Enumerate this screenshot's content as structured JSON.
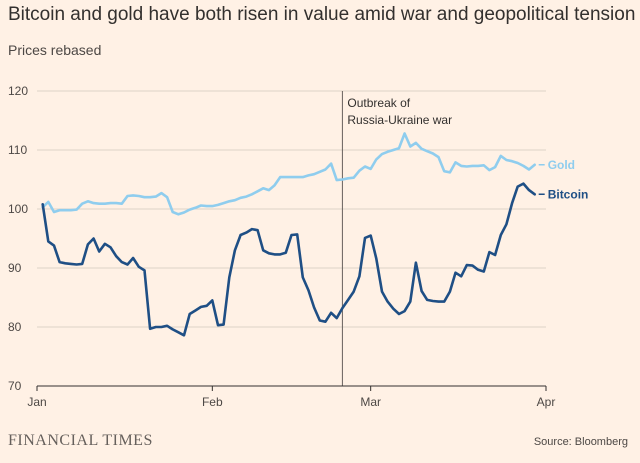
{
  "chart_data": {
    "type": "line",
    "title": "Bitcoin and gold have both risen in value amid war and geopolitical tension",
    "subtitle": "Prices rebased",
    "ylim": [
      70,
      120
    ],
    "yticks": [
      70,
      80,
      90,
      100,
      110,
      120
    ],
    "xlim": [
      "2022-01-01",
      "2022-04-01"
    ],
    "xticks": [
      {
        "date": "2022-01-01",
        "label": "Jan"
      },
      {
        "date": "2022-02-01",
        "label": "Feb"
      },
      {
        "date": "2022-03-01",
        "label": "Mar"
      },
      {
        "date": "2022-04-01",
        "label": "Apr"
      }
    ],
    "grid": true,
    "annotation": {
      "date": "2022-02-24",
      "lines": [
        "Outbreak of",
        "Russia-Ukraine war"
      ]
    },
    "series": [
      {
        "name": "Gold",
        "color": "#8fcdee",
        "points": [
          [
            "2022-01-02",
            100.3
          ],
          [
            "2022-01-03",
            101.2
          ],
          [
            "2022-01-04",
            99.5
          ],
          [
            "2022-01-05",
            99.8
          ],
          [
            "2022-01-06",
            99.8
          ],
          [
            "2022-01-07",
            99.8
          ],
          [
            "2022-01-08",
            99.9
          ],
          [
            "2022-01-09",
            100.9
          ],
          [
            "2022-01-10",
            101.3
          ],
          [
            "2022-01-11",
            101.0
          ],
          [
            "2022-01-12",
            100.9
          ],
          [
            "2022-01-13",
            100.9
          ],
          [
            "2022-01-14",
            101.0
          ],
          [
            "2022-01-15",
            101.0
          ],
          [
            "2022-01-16",
            100.9
          ],
          [
            "2022-01-17",
            102.2
          ],
          [
            "2022-01-18",
            102.3
          ],
          [
            "2022-01-19",
            102.2
          ],
          [
            "2022-01-20",
            102.0
          ],
          [
            "2022-01-21",
            102.0
          ],
          [
            "2022-01-22",
            102.1
          ],
          [
            "2022-01-23",
            102.7
          ],
          [
            "2022-01-24",
            102.0
          ],
          [
            "2022-01-25",
            99.5
          ],
          [
            "2022-01-26",
            99.1
          ],
          [
            "2022-01-27",
            99.4
          ],
          [
            "2022-01-28",
            99.9
          ],
          [
            "2022-01-29",
            100.2
          ],
          [
            "2022-01-30",
            100.6
          ],
          [
            "2022-01-31",
            100.5
          ],
          [
            "2022-02-01",
            100.5
          ],
          [
            "2022-02-02",
            100.7
          ],
          [
            "2022-02-03",
            101.0
          ],
          [
            "2022-02-04",
            101.3
          ],
          [
            "2022-02-05",
            101.5
          ],
          [
            "2022-02-06",
            101.9
          ],
          [
            "2022-02-07",
            102.1
          ],
          [
            "2022-02-08",
            102.5
          ],
          [
            "2022-02-09",
            103.0
          ],
          [
            "2022-02-10",
            103.5
          ],
          [
            "2022-02-11",
            103.2
          ],
          [
            "2022-02-12",
            104.0
          ],
          [
            "2022-02-13",
            105.4
          ],
          [
            "2022-02-14",
            105.4
          ],
          [
            "2022-02-15",
            105.4
          ],
          [
            "2022-02-16",
            105.4
          ],
          [
            "2022-02-17",
            105.4
          ],
          [
            "2022-02-18",
            105.7
          ],
          [
            "2022-02-19",
            105.9
          ],
          [
            "2022-02-20",
            106.3
          ],
          [
            "2022-02-21",
            106.7
          ],
          [
            "2022-02-22",
            107.7
          ],
          [
            "2022-02-23",
            104.9
          ],
          [
            "2022-02-24",
            105.0
          ],
          [
            "2022-02-25",
            105.2
          ],
          [
            "2022-02-26",
            105.3
          ],
          [
            "2022-02-27",
            106.5
          ],
          [
            "2022-02-28",
            107.2
          ],
          [
            "2022-03-01",
            106.8
          ],
          [
            "2022-03-02",
            108.4
          ],
          [
            "2022-03-03",
            109.3
          ],
          [
            "2022-03-04",
            109.7
          ],
          [
            "2022-03-05",
            110.0
          ],
          [
            "2022-03-06",
            110.3
          ],
          [
            "2022-03-07",
            112.8
          ],
          [
            "2022-03-08",
            110.6
          ],
          [
            "2022-03-09",
            111.2
          ],
          [
            "2022-03-10",
            110.2
          ],
          [
            "2022-03-11",
            109.8
          ],
          [
            "2022-03-12",
            109.4
          ],
          [
            "2022-03-13",
            108.8
          ],
          [
            "2022-03-14",
            106.4
          ],
          [
            "2022-03-15",
            106.2
          ],
          [
            "2022-03-16",
            107.9
          ],
          [
            "2022-03-17",
            107.3
          ],
          [
            "2022-03-18",
            107.2
          ],
          [
            "2022-03-19",
            107.3
          ],
          [
            "2022-03-20",
            107.3
          ],
          [
            "2022-03-21",
            107.4
          ],
          [
            "2022-03-22",
            106.6
          ],
          [
            "2022-03-23",
            107.1
          ],
          [
            "2022-03-24",
            109.0
          ],
          [
            "2022-03-25",
            108.3
          ],
          [
            "2022-03-26",
            108.1
          ],
          [
            "2022-03-27",
            107.8
          ],
          [
            "2022-03-28",
            107.3
          ],
          [
            "2022-03-29",
            106.7
          ],
          [
            "2022-03-30",
            107.5
          ]
        ]
      },
      {
        "name": "Bitcoin",
        "color": "#1f4f85",
        "points": [
          [
            "2022-01-02",
            100.8
          ],
          [
            "2022-01-03",
            94.5
          ],
          [
            "2022-01-04",
            93.8
          ],
          [
            "2022-01-05",
            91.0
          ],
          [
            "2022-01-06",
            90.8
          ],
          [
            "2022-01-07",
            90.7
          ],
          [
            "2022-01-08",
            90.6
          ],
          [
            "2022-01-09",
            90.7
          ],
          [
            "2022-01-10",
            94.0
          ],
          [
            "2022-01-11",
            95.0
          ],
          [
            "2022-01-12",
            92.8
          ],
          [
            "2022-01-13",
            94.1
          ],
          [
            "2022-01-14",
            93.5
          ],
          [
            "2022-01-15",
            92.0
          ],
          [
            "2022-01-16",
            91.0
          ],
          [
            "2022-01-17",
            90.6
          ],
          [
            "2022-01-18",
            91.7
          ],
          [
            "2022-01-19",
            90.2
          ],
          [
            "2022-01-20",
            89.6
          ],
          [
            "2022-01-21",
            79.7
          ],
          [
            "2022-01-22",
            80.0
          ],
          [
            "2022-01-23",
            80.0
          ],
          [
            "2022-01-24",
            80.2
          ],
          [
            "2022-01-25",
            79.6
          ],
          [
            "2022-01-26",
            79.1
          ],
          [
            "2022-01-27",
            78.6
          ],
          [
            "2022-01-28",
            82.2
          ],
          [
            "2022-01-29",
            82.8
          ],
          [
            "2022-01-30",
            83.4
          ],
          [
            "2022-01-31",
            83.6
          ],
          [
            "2022-02-01",
            84.5
          ],
          [
            "2022-02-02",
            80.3
          ],
          [
            "2022-02-03",
            80.4
          ],
          [
            "2022-02-04",
            88.4
          ],
          [
            "2022-02-05",
            93.0
          ],
          [
            "2022-02-06",
            95.6
          ],
          [
            "2022-02-07",
            96.0
          ],
          [
            "2022-02-08",
            96.6
          ],
          [
            "2022-02-09",
            96.4
          ],
          [
            "2022-02-10",
            93.0
          ],
          [
            "2022-02-11",
            92.5
          ],
          [
            "2022-02-12",
            92.3
          ],
          [
            "2022-02-13",
            92.3
          ],
          [
            "2022-02-14",
            92.6
          ],
          [
            "2022-02-15",
            95.6
          ],
          [
            "2022-02-16",
            95.7
          ],
          [
            "2022-02-17",
            88.4
          ],
          [
            "2022-02-18",
            86.2
          ],
          [
            "2022-02-19",
            83.3
          ],
          [
            "2022-02-20",
            81.1
          ],
          [
            "2022-02-21",
            80.9
          ],
          [
            "2022-02-22",
            82.4
          ],
          [
            "2022-02-23",
            81.5
          ],
          [
            "2022-02-24",
            83.2
          ],
          [
            "2022-02-25",
            84.6
          ],
          [
            "2022-02-26",
            86.0
          ],
          [
            "2022-02-27",
            88.6
          ],
          [
            "2022-02-28",
            95.1
          ],
          [
            "2022-03-01",
            95.5
          ],
          [
            "2022-03-02",
            91.6
          ],
          [
            "2022-03-03",
            86.0
          ],
          [
            "2022-03-04",
            84.3
          ],
          [
            "2022-03-05",
            83.1
          ],
          [
            "2022-03-06",
            82.2
          ],
          [
            "2022-03-07",
            82.7
          ],
          [
            "2022-03-08",
            84.3
          ],
          [
            "2022-03-09",
            90.9
          ],
          [
            "2022-03-10",
            86.1
          ],
          [
            "2022-03-11",
            84.6
          ],
          [
            "2022-03-12",
            84.4
          ],
          [
            "2022-03-13",
            84.3
          ],
          [
            "2022-03-14",
            84.3
          ],
          [
            "2022-03-15",
            86.0
          ],
          [
            "2022-03-16",
            89.2
          ],
          [
            "2022-03-17",
            88.6
          ],
          [
            "2022-03-18",
            90.5
          ],
          [
            "2022-03-19",
            90.4
          ],
          [
            "2022-03-20",
            89.7
          ],
          [
            "2022-03-21",
            89.4
          ],
          [
            "2022-03-22",
            92.7
          ],
          [
            "2022-03-23",
            92.2
          ],
          [
            "2022-03-24",
            95.6
          ],
          [
            "2022-03-25",
            97.4
          ],
          [
            "2022-03-26",
            101.0
          ],
          [
            "2022-03-27",
            103.8
          ],
          [
            "2022-03-28",
            104.3
          ],
          [
            "2022-03-29",
            103.2
          ],
          [
            "2022-03-30",
            102.5
          ]
        ]
      }
    ]
  },
  "footer": {
    "brand": "FINANCIAL TIMES",
    "source": "Source: Bloomberg"
  }
}
